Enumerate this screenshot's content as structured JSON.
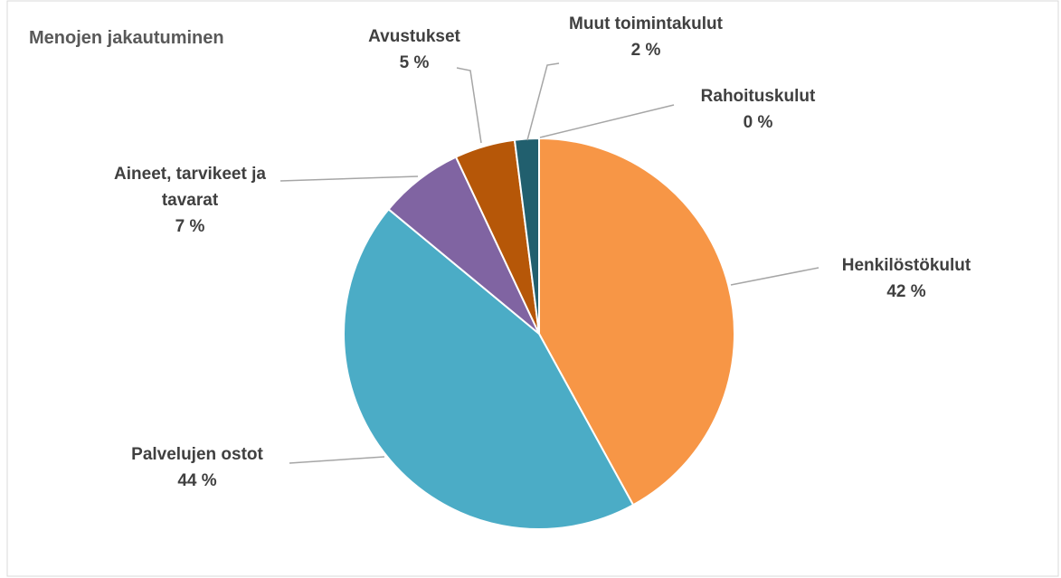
{
  "chart_data": {
    "type": "pie",
    "title": "Menojen jakautuminen",
    "categories": [
      "Henkilöstökulut",
      "Palvelujen ostot",
      "Aineet, tarvikeet ja tavarat",
      "Avustukset",
      "Muut toimintakulut",
      "Rahoituskulut"
    ],
    "values": [
      42,
      44,
      7,
      5,
      2,
      0
    ],
    "value_labels": [
      "42 %",
      "44 %",
      "7 %",
      "5 %",
      "2 %",
      "0 %"
    ],
    "colors": [
      "#f79646",
      "#4bacc6",
      "#8064a2",
      "#b65708",
      "#215f6e",
      "#2c4d75"
    ]
  }
}
